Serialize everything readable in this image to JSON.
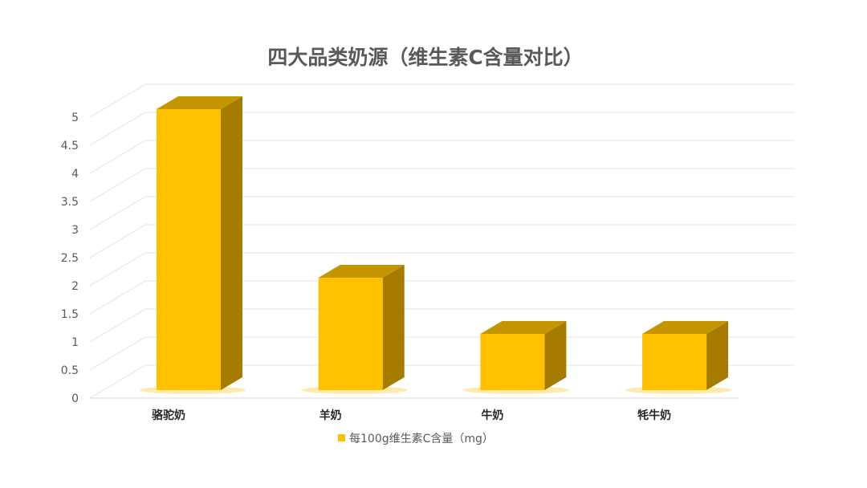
{
  "chart_data": {
    "type": "bar",
    "style": "3d-column",
    "title": "四大品类奶源（维生素C含量对比）",
    "categories": [
      "骆驼奶",
      "羊奶",
      "牛奶",
      "牦牛奶"
    ],
    "series": [
      {
        "name": "每100g维生素C含量（mg）",
        "values": [
          5,
          2,
          1,
          1
        ],
        "color": "#FFC000"
      }
    ],
    "yticks": [
      "0",
      "0.5",
      "1",
      "1.5",
      "2",
      "2.5",
      "3",
      "3.5",
      "4",
      "4.5",
      "5"
    ],
    "ylim": [
      0,
      5
    ],
    "grid": true,
    "legend": "bottom"
  }
}
